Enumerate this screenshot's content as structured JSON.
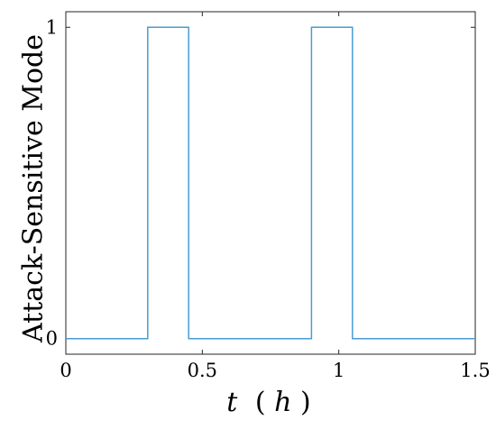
{
  "chart_data": {
    "type": "line",
    "step": true,
    "xlabel": "t (h)",
    "xlabel_parts": {
      "var": "t",
      "open": "(",
      "unit": "h",
      "close": ")"
    },
    "ylabel": "Attack-Sensitive Mode",
    "xlim": [
      0,
      1.5
    ],
    "ylim": [
      -0.05,
      1.05
    ],
    "xticks": [
      0,
      0.5,
      1,
      1.5
    ],
    "xtick_labels": [
      "0",
      "0.5",
      "1",
      "1.5"
    ],
    "yticks": [
      0,
      1
    ],
    "ytick_labels": [
      "0",
      "1"
    ],
    "grid": false,
    "series": [
      {
        "color": "#4a9bd4",
        "x": [
          0,
          0.3,
          0.3,
          0.45,
          0.45,
          0.9,
          0.9,
          1.05,
          1.05,
          1.5
        ],
        "y": [
          0,
          0,
          1,
          1,
          0,
          0,
          1,
          1,
          0,
          0
        ]
      }
    ]
  }
}
